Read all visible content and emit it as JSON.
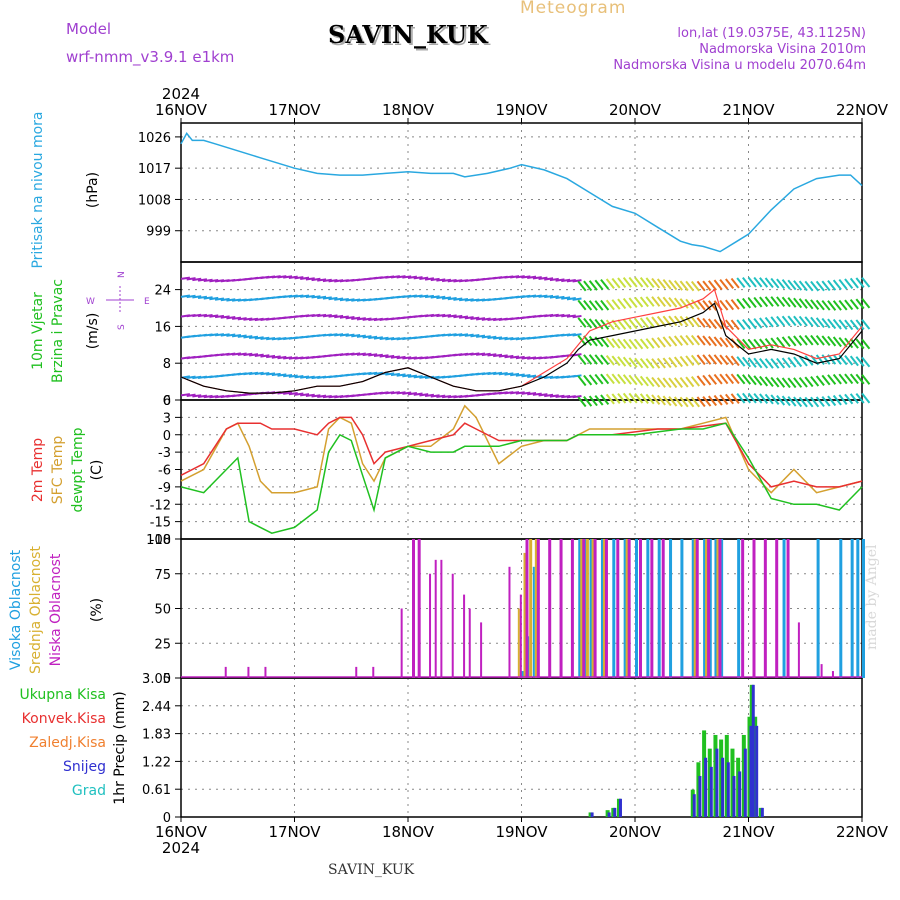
{
  "header": {
    "model_label": "Model",
    "model_name": "wrf-nmm_v3.9.1 e1km",
    "station": "SAVIN_KUK",
    "product": "Meteogram",
    "coords": "lon,lat (19.0375E, 43.1125N)",
    "altitude": "Nadmorska Visina 2010m",
    "model_altitude": "Nadmorska Visina u modelu 2070.64m"
  },
  "footer": {
    "station": "SAVIN_KUK",
    "credit": "made by Angel"
  },
  "colors": {
    "pressure": "#2aa8e0",
    "temp2m": "#e83030",
    "sfc_temp": "#d4a030",
    "dewpt": "#20c020",
    "high_cloud": "#20a0e0",
    "mid_cloud": "#d8b030",
    "low_cloud": "#c020c0",
    "total_precip": "#20c020",
    "conv_precip": "#e83030",
    "frz_precip": "#f08030",
    "snow": "#3030d0",
    "grad": "#20c0c0",
    "purple_label": "#a040d0"
  },
  "chart_data": [
    {
      "type": "line",
      "panel": "pressure",
      "ylabel_left": "Pritisak na nivou mora",
      "ylabel_unit": "(hPa)",
      "year": "2024",
      "x_ticks": [
        "16NOV",
        "17NOV",
        "18NOV",
        "19NOV",
        "20NOV",
        "21NOV",
        "22NOV"
      ],
      "ylim": [
        990,
        1030
      ],
      "y_ticks": [
        999,
        1008,
        1017,
        1026
      ],
      "x_days": [
        0,
        0.05,
        0.1,
        0.2,
        0.3,
        0.5,
        0.7,
        1.0,
        1.2,
        1.4,
        1.6,
        1.8,
        2.0,
        2.2,
        2.4,
        2.5,
        2.7,
        2.9,
        3.0,
        3.2,
        3.4,
        3.6,
        3.8,
        4.0,
        4.2,
        4.4,
        4.5,
        4.6,
        4.7,
        4.75,
        4.8,
        4.9,
        5.0,
        5.2,
        5.4,
        5.6,
        5.8,
        5.9,
        6.0
      ],
      "series": [
        {
          "name": "Pritisak",
          "values": [
            1024,
            1027,
            1025,
            1025,
            1024,
            1022,
            1020,
            1017,
            1015.5,
            1015,
            1015,
            1015.5,
            1016,
            1015.5,
            1015.5,
            1014.5,
            1015.5,
            1017,
            1018,
            1016.5,
            1014,
            1010,
            1006,
            1004,
            1000,
            996,
            995,
            994.5,
            993.5,
            993,
            994,
            996,
            998,
            1005,
            1011,
            1014,
            1015,
            1015,
            1012
          ]
        }
      ]
    },
    {
      "type": "line",
      "panel": "wind",
      "ylabel_left": "10m Vjetar",
      "ylabel_left2": "Brzina i Pravac",
      "ylabel_unit": "(m/s)",
      "compass": {
        "n": "N",
        "w": "W",
        "s": "S",
        "e": "E"
      },
      "ylim": [
        0,
        30
      ],
      "y_ticks": [
        0,
        8,
        16,
        24
      ],
      "x_days": [
        0,
        0.2,
        0.4,
        0.6,
        0.8,
        1.0,
        1.2,
        1.4,
        1.6,
        1.8,
        2.0,
        2.2,
        2.4,
        2.6,
        2.8,
        3.0,
        3.2,
        3.4,
        3.5,
        3.6,
        3.8,
        4.0,
        4.2,
        4.4,
        4.6,
        4.7,
        4.8,
        5.0,
        5.2,
        5.4,
        5.6,
        5.8,
        6.0
      ],
      "series": [
        {
          "name": "10m wind",
          "values": [
            5,
            3,
            2,
            1.5,
            1.5,
            2,
            3,
            3,
            4,
            6,
            7,
            5,
            3,
            2,
            2,
            3,
            5,
            8,
            11,
            13,
            14,
            15,
            16,
            17,
            19,
            21,
            14,
            10,
            11,
            10,
            8,
            9,
            15
          ]
        },
        {
          "name": "gust",
          "values": [
            5,
            3,
            2,
            1.5,
            1.5,
            2,
            3,
            3,
            4,
            6,
            7,
            5,
            3,
            2,
            2,
            3,
            6,
            9,
            12,
            15,
            17,
            18,
            19,
            20,
            22,
            24,
            16,
            11,
            12,
            11,
            9,
            10,
            16
          ]
        }
      ]
    },
    {
      "type": "line",
      "panel": "temperature",
      "ylabel_left": "2m Temp",
      "ylabel_left2": "SFC Temp",
      "ylabel_left3": "dewpt Temp",
      "ylabel_unit": "(C)",
      "ylim": [
        -18,
        6
      ],
      "y_ticks": [
        6,
        3,
        0,
        -3,
        -6,
        -9,
        -12,
        -15,
        -18
      ],
      "x_days": [
        0,
        0.2,
        0.4,
        0.5,
        0.6,
        0.7,
        0.8,
        1.0,
        1.2,
        1.3,
        1.4,
        1.5,
        1.6,
        1.7,
        1.8,
        2.0,
        2.2,
        2.4,
        2.5,
        2.6,
        2.8,
        3.0,
        3.2,
        3.4,
        3.5,
        3.6,
        3.8,
        4.0,
        4.2,
        4.4,
        4.6,
        4.8,
        5.0,
        5.2,
        5.4,
        5.6,
        5.8,
        6.0
      ],
      "series": [
        {
          "name": "2m Temp",
          "values": [
            -7,
            -5,
            1,
            2,
            2,
            2,
            1,
            1,
            0,
            2,
            3,
            3,
            0,
            -5,
            -3,
            -2,
            -1,
            0,
            2,
            1,
            -1,
            -1,
            -1,
            -1,
            0,
            0,
            0,
            0.5,
            1,
            1,
            1.5,
            2,
            -5,
            -9,
            -8,
            -9,
            -9,
            -8
          ]
        },
        {
          "name": "SFC Temp",
          "values": [
            -8,
            -6,
            1,
            2,
            -2,
            -8,
            -10,
            -10,
            -9,
            1,
            3,
            2,
            -5,
            -8,
            -4,
            -2,
            -2,
            1,
            5,
            3,
            -5,
            -2,
            -1,
            -1,
            0,
            1,
            1,
            1,
            1,
            1,
            2,
            3,
            -6,
            -10,
            -6,
            -10,
            -9,
            -8
          ]
        },
        {
          "name": "dewpt Temp",
          "values": [
            -9,
            -10,
            -6,
            -4,
            -15,
            -16,
            -17,
            -16,
            -13,
            -3,
            0,
            -1,
            -7,
            -13,
            -4,
            -2,
            -3,
            -3,
            -2,
            -2,
            -2,
            -1,
            -1,
            -1,
            0,
            0,
            0,
            0,
            0.5,
            1,
            1,
            2,
            -4,
            -11,
            -12,
            -12,
            -13,
            -9
          ]
        }
      ]
    },
    {
      "type": "bar",
      "panel": "clouds",
      "ylabel_left": "Visoka Oblacnost",
      "ylabel_left2": "Srednja Oblacnost",
      "ylabel_left3": "Niska Oblacnost",
      "ylabel_unit": "(%)",
      "ylim": [
        0,
        100
      ],
      "y_ticks": [
        0,
        25,
        50,
        75,
        100
      ],
      "series": [
        {
          "name": "Visoka Oblacnost",
          "x_days": [
            3.0,
            3.05,
            3.1,
            3.5,
            3.55,
            3.6,
            3.7,
            3.8,
            3.9,
            4.0,
            4.1,
            4.2,
            4.3,
            4.4,
            4.5,
            4.6,
            4.65,
            4.7,
            4.75,
            4.9,
            5.3,
            5.6,
            5.8,
            5.9,
            5.95,
            6.0
          ],
          "values": [
            5,
            30,
            80,
            100,
            100,
            100,
            100,
            100,
            100,
            100,
            100,
            100,
            100,
            100,
            100,
            100,
            100,
            100,
            100,
            100,
            100,
            100,
            100,
            100,
            100,
            100
          ]
        },
        {
          "name": "Srednja Oblacnost",
          "x_days": [
            2.95,
            3.0,
            3.05,
            3.1,
            3.5,
            3.55,
            3.6,
            3.7,
            3.9,
            4.5,
            4.6,
            4.7
          ],
          "values": [
            50,
            90,
            100,
            100,
            100,
            100,
            100,
            100,
            100,
            100,
            100,
            100
          ]
        },
        {
          "name": "Niska Oblacnost",
          "x_days": [
            0.35,
            0.55,
            0.7,
            1.5,
            1.65,
            1.9,
            2.0,
            2.05,
            2.15,
            2.2,
            2.25,
            2.35,
            2.45,
            2.5,
            2.6,
            2.85,
            2.95,
            3.0,
            3.1,
            3.2,
            3.3,
            3.4,
            3.5,
            3.6,
            3.7,
            3.8,
            3.9,
            4.0,
            4.1,
            4.2,
            4.5,
            4.6,
            4.7,
            4.9,
            5.0,
            5.1,
            5.2,
            5.3,
            5.4,
            5.6,
            5.7
          ],
          "values": [
            8,
            8,
            8,
            8,
            8,
            50,
            100,
            100,
            75,
            85,
            85,
            75,
            60,
            50,
            40,
            80,
            60,
            100,
            100,
            100,
            100,
            100,
            100,
            100,
            100,
            100,
            100,
            100,
            100,
            100,
            100,
            100,
            100,
            100,
            100,
            100,
            100,
            100,
            40,
            10,
            5
          ]
        }
      ]
    },
    {
      "type": "bar",
      "panel": "precip",
      "legend": [
        "Ukupna Kisa",
        "Konvek.Kisa",
        "Zaledj.Kisa",
        "Snijeg",
        "Grad"
      ],
      "ylabel_unit": "1hr Precip (mm)",
      "ylim": [
        0,
        3.05
      ],
      "y_ticks": [
        0,
        0.61,
        1.22,
        1.83,
        2.44,
        3.05
      ],
      "x_days": [
        3.6,
        3.75,
        3.8,
        3.85,
        4.5,
        4.55,
        4.6,
        4.65,
        4.7,
        4.75,
        4.8,
        4.85,
        4.9,
        4.95,
        5.0,
        5.02,
        5.05,
        5.1
      ],
      "series": [
        {
          "name": "Ukupna Kisa",
          "values": [
            0.1,
            0.15,
            0.2,
            0.4,
            0.6,
            1.2,
            1.9,
            1.5,
            1.8,
            1.7,
            1.8,
            1.5,
            1.3,
            1.8,
            2.2,
            2.9,
            2.2,
            0.2
          ]
        },
        {
          "name": "Snijeg",
          "values": [
            0.1,
            0.1,
            0.2,
            0.4,
            0.5,
            0.9,
            1.3,
            1.1,
            1.5,
            1.3,
            1.2,
            0.9,
            1.0,
            1.5,
            2.0,
            2.9,
            2.0,
            0.2
          ]
        }
      ]
    }
  ]
}
